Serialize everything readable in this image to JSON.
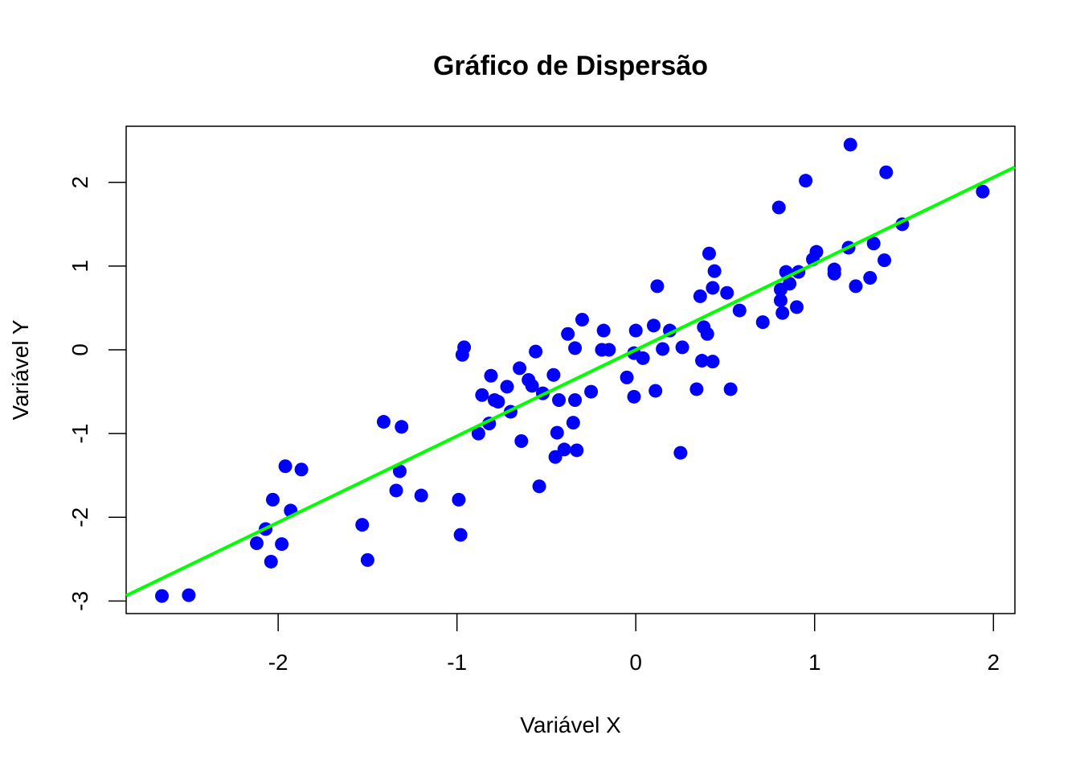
{
  "chart_data": {
    "type": "scatter",
    "title": "Gráfico de Dispersão",
    "xlabel": "Variável X",
    "ylabel": "Variável Y",
    "xlim": [
      -2.85,
      2.12
    ],
    "ylim": [
      -3.15,
      2.67
    ],
    "xticks": [
      -2,
      -1,
      0,
      1,
      2
    ],
    "xtick_labels": [
      "-2",
      "-1",
      "0",
      "1",
      "2"
    ],
    "yticks": [
      -3,
      -2,
      -1,
      0,
      1,
      2
    ],
    "ytick_labels": [
      "-3",
      "-2",
      "-1",
      "0",
      "1",
      "2"
    ],
    "grid": false,
    "point_color": "#0000ff",
    "line_color": "#00ff00",
    "regression_line": {
      "intercept": 0.0,
      "slope": 1.03
    },
    "points": [
      [
        -2.65,
        -2.94
      ],
      [
        -2.5,
        -2.93
      ],
      [
        -2.12,
        -2.31
      ],
      [
        -2.07,
        -2.14
      ],
      [
        -2.04,
        -2.53
      ],
      [
        -2.03,
        -1.79
      ],
      [
        -1.98,
        -2.32
      ],
      [
        -1.96,
        -1.39
      ],
      [
        -1.93,
        -1.92
      ],
      [
        -1.87,
        -1.43
      ],
      [
        -1.53,
        -2.09
      ],
      [
        -1.5,
        -2.51
      ],
      [
        -1.41,
        -0.86
      ],
      [
        -1.34,
        -1.68
      ],
      [
        -1.32,
        -1.45
      ],
      [
        -1.31,
        -0.92
      ],
      [
        -1.2,
        -1.74
      ],
      [
        -0.99,
        -1.79
      ],
      [
        -0.98,
        -2.21
      ],
      [
        -0.97,
        -0.06
      ],
      [
        -0.96,
        0.03
      ],
      [
        -0.88,
        -1.0
      ],
      [
        -0.86,
        -0.54
      ],
      [
        -0.82,
        -0.88
      ],
      [
        -0.81,
        -0.31
      ],
      [
        -0.79,
        -0.6
      ],
      [
        -0.77,
        -0.62
      ],
      [
        -0.72,
        -0.44
      ],
      [
        -0.7,
        -0.74
      ],
      [
        -0.65,
        -0.22
      ],
      [
        -0.64,
        -1.09
      ],
      [
        -0.6,
        -0.36
      ],
      [
        -0.58,
        -0.43
      ],
      [
        -0.56,
        -0.02
      ],
      [
        -0.54,
        -1.63
      ],
      [
        -0.52,
        -0.52
      ],
      [
        -0.46,
        -0.3
      ],
      [
        -0.45,
        -1.28
      ],
      [
        -0.44,
        -0.99
      ],
      [
        -0.43,
        -0.6
      ],
      [
        -0.4,
        -1.19
      ],
      [
        -0.38,
        0.19
      ],
      [
        -0.35,
        -0.87
      ],
      [
        -0.34,
        -0.6
      ],
      [
        -0.34,
        0.02
      ],
      [
        -0.33,
        -1.2
      ],
      [
        -0.3,
        0.36
      ],
      [
        -0.25,
        -0.5
      ],
      [
        -0.19,
        0.0
      ],
      [
        -0.18,
        0.23
      ],
      [
        -0.15,
        0.0
      ],
      [
        -0.05,
        -0.33
      ],
      [
        -0.01,
        -0.56
      ],
      [
        -0.01,
        -0.04
      ],
      [
        0.0,
        0.23
      ],
      [
        0.04,
        -0.1
      ],
      [
        0.1,
        0.29
      ],
      [
        0.11,
        -0.49
      ],
      [
        0.12,
        0.76
      ],
      [
        0.15,
        0.01
      ],
      [
        0.19,
        0.23
      ],
      [
        0.25,
        -1.23
      ],
      [
        0.26,
        0.03
      ],
      [
        0.34,
        -0.47
      ],
      [
        0.36,
        0.64
      ],
      [
        0.37,
        -0.13
      ],
      [
        0.38,
        0.27
      ],
      [
        0.4,
        0.19
      ],
      [
        0.41,
        1.15
      ],
      [
        0.43,
        -0.14
      ],
      [
        0.43,
        0.74
      ],
      [
        0.44,
        0.94
      ],
      [
        0.51,
        0.68
      ],
      [
        0.53,
        -0.47
      ],
      [
        0.58,
        0.47
      ],
      [
        0.71,
        0.33
      ],
      [
        0.8,
        1.7
      ],
      [
        0.81,
        0.59
      ],
      [
        0.81,
        0.72
      ],
      [
        0.82,
        0.44
      ],
      [
        0.84,
        0.93
      ],
      [
        0.86,
        0.79
      ],
      [
        0.9,
        0.51
      ],
      [
        0.91,
        0.93
      ],
      [
        0.95,
        2.02
      ],
      [
        0.99,
        1.08
      ],
      [
        1.01,
        1.17
      ],
      [
        1.11,
        0.91
      ],
      [
        1.11,
        0.96
      ],
      [
        1.19,
        1.22
      ],
      [
        1.2,
        2.45
      ],
      [
        1.23,
        0.76
      ],
      [
        1.31,
        0.86
      ],
      [
        1.33,
        1.27
      ],
      [
        1.39,
        1.07
      ],
      [
        1.4,
        2.12
      ],
      [
        1.49,
        1.5
      ],
      [
        1.94,
        1.89
      ]
    ]
  }
}
